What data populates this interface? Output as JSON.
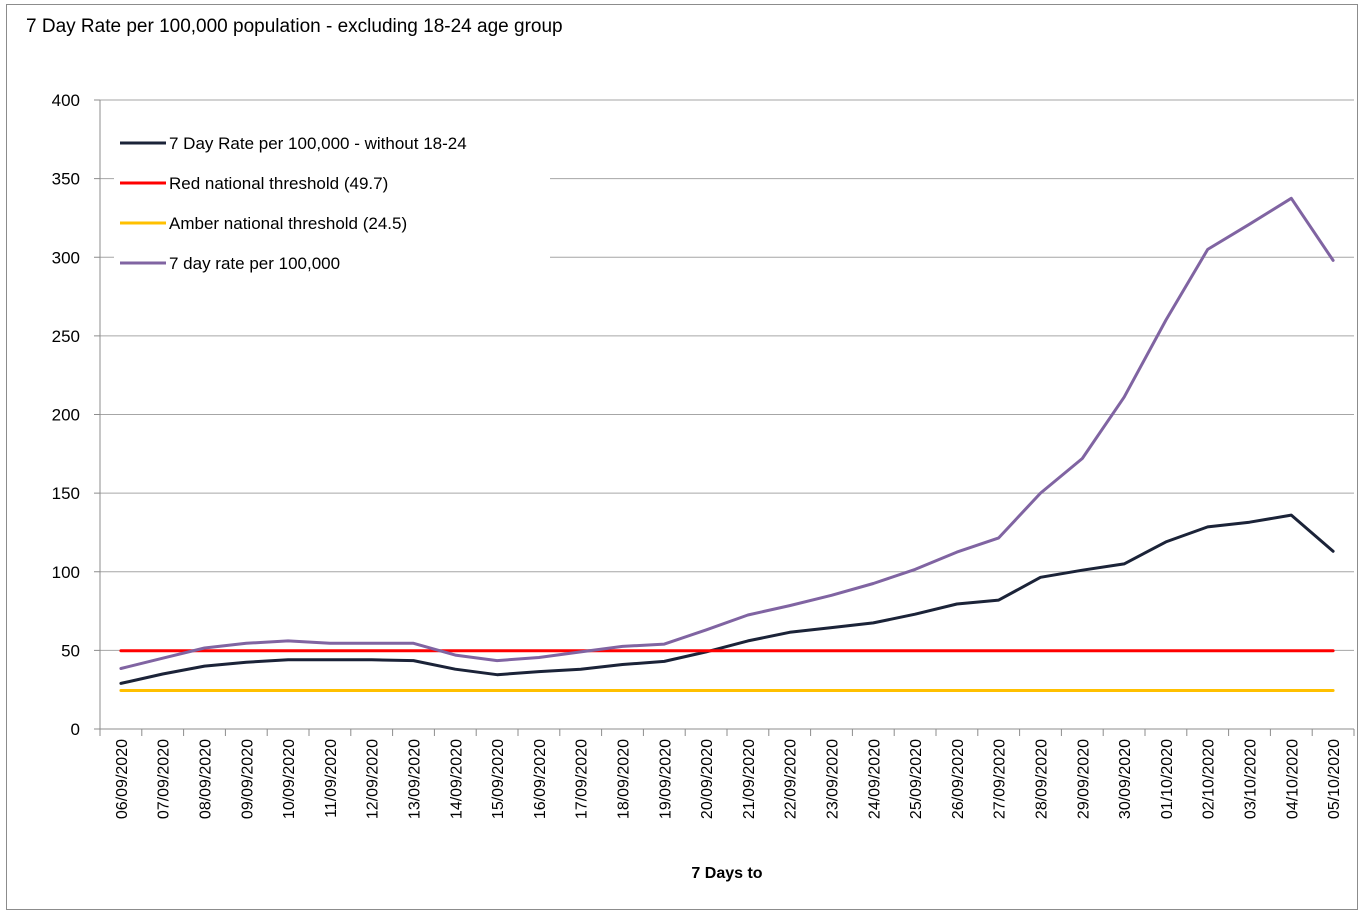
{
  "chart_data": {
    "type": "line",
    "title": "7 Day Rate per 100,000 population - excluding 18-24 age group",
    "xlabel": "7 Days to",
    "ylabel": "",
    "ylim": [
      0,
      400
    ],
    "yticks": [
      0,
      50,
      100,
      150,
      200,
      250,
      300,
      350,
      400
    ],
    "grid": true,
    "legend_position": "top-left",
    "categories": [
      "06/09/2020",
      "07/09/2020",
      "08/09/2020",
      "09/09/2020",
      "10/09/2020",
      "11/09/2020",
      "12/09/2020",
      "13/09/2020",
      "14/09/2020",
      "15/09/2020",
      "16/09/2020",
      "17/09/2020",
      "18/09/2020",
      "19/09/2020",
      "20/09/2020",
      "21/09/2020",
      "22/09/2020",
      "23/09/2020",
      "24/09/2020",
      "25/09/2020",
      "26/09/2020",
      "27/09/2020",
      "28/09/2020",
      "29/09/2020",
      "30/09/2020",
      "01/10/2020",
      "02/10/2020",
      "03/10/2020",
      "04/10/2020",
      "05/10/2020"
    ],
    "series": [
      {
        "name": "7 Day Rate per 100,000 - without 18-24",
        "color": "#1b2338",
        "values": [
          29,
          35,
          40,
          42.5,
          44,
          44,
          44,
          43.5,
          38,
          34.5,
          36.5,
          38,
          41,
          43,
          49,
          56,
          61.5,
          64.5,
          67.5,
          73,
          79.5,
          82,
          96.5,
          101,
          105,
          119,
          128.5,
          131.5,
          136,
          113
        ]
      },
      {
        "name": "Red national threshold (49.7)",
        "color": "#ff0000",
        "values": [
          49.7,
          49.7,
          49.7,
          49.7,
          49.7,
          49.7,
          49.7,
          49.7,
          49.7,
          49.7,
          49.7,
          49.7,
          49.7,
          49.7,
          49.7,
          49.7,
          49.7,
          49.7,
          49.7,
          49.7,
          49.7,
          49.7,
          49.7,
          49.7,
          49.7,
          49.7,
          49.7,
          49.7,
          49.7,
          49.7
        ]
      },
      {
        "name": "Amber national threshold (24.5)",
        "color": "#ffc000",
        "values": [
          24.5,
          24.5,
          24.5,
          24.5,
          24.5,
          24.5,
          24.5,
          24.5,
          24.5,
          24.5,
          24.5,
          24.5,
          24.5,
          24.5,
          24.5,
          24.5,
          24.5,
          24.5,
          24.5,
          24.5,
          24.5,
          24.5,
          24.5,
          24.5,
          24.5,
          24.5,
          24.5,
          24.5,
          24.5,
          24.5
        ]
      },
      {
        "name": "7 day rate per 100,000",
        "color": "#8064a2",
        "values": [
          38.5,
          45,
          51.5,
          54.5,
          56,
          54.5,
          54.5,
          54.5,
          47,
          43.5,
          45.5,
          49,
          52.5,
          54,
          63,
          72.5,
          78.5,
          85,
          92.5,
          101.5,
          112.5,
          121.5,
          150,
          172,
          211,
          260,
          305,
          321,
          337.5,
          298
        ]
      }
    ]
  }
}
